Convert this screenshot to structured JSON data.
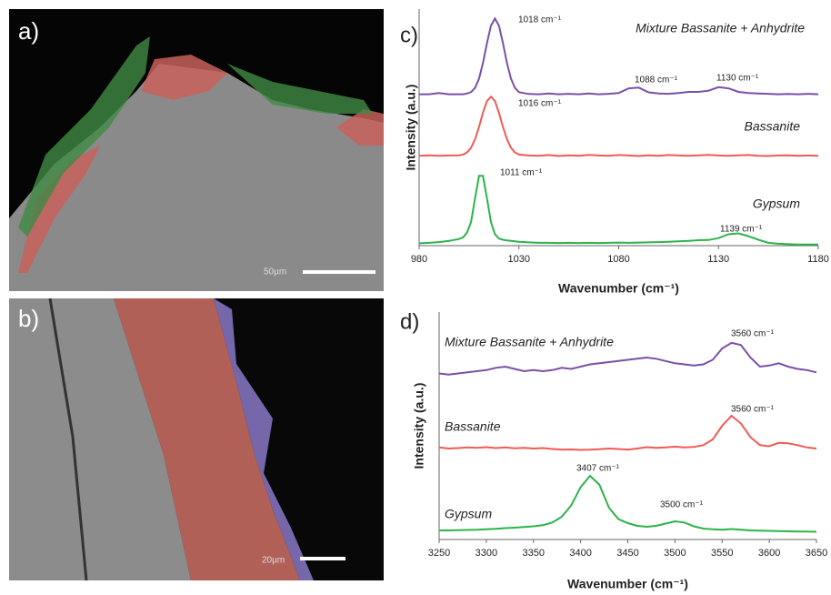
{
  "image_panels": [
    {
      "label": "a)",
      "scale_bar": "50µm"
    },
    {
      "label": "b)",
      "scale_bar": "20µm"
    }
  ],
  "chart_data": [
    {
      "type": "line",
      "panel_label": "c)",
      "x_label": "Wavenumber (cm⁻¹)",
      "y_label": "Intensity (a.u.)",
      "x": [
        980,
        985,
        990,
        995,
        1000,
        1002,
        1004,
        1006,
        1008,
        1010,
        1012,
        1014,
        1016,
        1018,
        1020,
        1022,
        1024,
        1026,
        1028,
        1030,
        1035,
        1040,
        1045,
        1050,
        1055,
        1060,
        1065,
        1070,
        1075,
        1080,
        1085,
        1090,
        1095,
        1100,
        1105,
        1110,
        1115,
        1120,
        1125,
        1130,
        1135,
        1140,
        1145,
        1150,
        1155,
        1160,
        1165,
        1170,
        1175,
        1180
      ],
      "xlim": [
        980,
        1180
      ],
      "xticks": [
        980,
        1030,
        1080,
        1130,
        1180
      ],
      "ylim": [
        0,
        100
      ],
      "series": [
        {
          "name": "Mixture Bassanite + Anhydrite",
          "color": "#7b4fa8",
          "values": [
            64,
            64,
            64.5,
            64,
            64,
            64,
            64.3,
            64.9,
            66.7,
            70.6,
            77.2,
            85.6,
            93,
            96,
            93,
            85.6,
            77.2,
            70.6,
            66.7,
            64.9,
            64.1,
            64,
            64.3,
            64,
            64.2,
            64,
            64.3,
            64,
            64.2,
            64.5,
            66.5,
            66.8,
            64.8,
            64.3,
            64.2,
            64.5,
            65,
            65,
            65.5,
            67,
            66.5,
            65,
            64.5,
            64.3,
            64.2,
            64,
            64.1,
            64,
            64.2,
            64
          ]
        },
        {
          "name": "Bassanite",
          "color": "#f05a55",
          "values": [
            38,
            38.2,
            38,
            38.1,
            38.2,
            38.5,
            39.4,
            41.4,
            45,
            50.2,
            56.2,
            61.1,
            63,
            61.1,
            56.2,
            50.2,
            45,
            41.4,
            39.4,
            38.5,
            38.1,
            38,
            38.3,
            37.9,
            38.2,
            38,
            38.4,
            38.1,
            38,
            38.3,
            38.1,
            37.9,
            38.2,
            38,
            38.3,
            38.1,
            38,
            38.2,
            38.4,
            38.1,
            38,
            38.2,
            38.3,
            38,
            37.9,
            38.1,
            38.2,
            38,
            38.1,
            38
          ]
        },
        {
          "name": "Gypsum",
          "color": "#2db34a",
          "values": [
            1,
            1.2,
            1.5,
            2,
            2.8,
            3.5,
            5.5,
            10,
            20,
            29.5,
            29.5,
            20,
            10,
            4.8,
            3,
            2.5,
            2.2,
            2,
            1.8,
            1.6,
            1.4,
            1.2,
            1.2,
            1.1,
            1.2,
            1.1,
            1.2,
            1.1,
            1.2,
            1.3,
            1.2,
            1.3,
            1.4,
            1.5,
            1.6,
            1.8,
            2,
            2.3,
            2.4,
            3.2,
            4.8,
            5.2,
            4,
            2.5,
            1.2,
            0.8,
            0.6,
            0.5,
            0.5,
            0.5
          ]
        }
      ],
      "annotations": [
        "1018 cm⁻¹",
        "1088 cm⁻¹",
        "1130 cm⁻¹",
        "1016 cm⁻¹",
        "1011 cm⁻¹",
        "1139 cm⁻¹"
      ]
    },
    {
      "type": "line",
      "panel_label": "d)",
      "x_label": "Wavenumber (cm⁻¹)",
      "y_label": "Intensity (a.u.)",
      "x": [
        3250,
        3260,
        3270,
        3280,
        3290,
        3300,
        3310,
        3320,
        3330,
        3340,
        3350,
        3360,
        3370,
        3380,
        3390,
        3400,
        3410,
        3420,
        3430,
        3440,
        3450,
        3460,
        3470,
        3480,
        3490,
        3500,
        3510,
        3520,
        3530,
        3540,
        3550,
        3560,
        3570,
        3580,
        3590,
        3600,
        3610,
        3620,
        3630,
        3640,
        3650
      ],
      "xlim": [
        3250,
        3650
      ],
      "xticks": [
        3250,
        3300,
        3350,
        3400,
        3450,
        3500,
        3550,
        3600,
        3650
      ],
      "ylim": [
        0,
        100
      ],
      "series": [
        {
          "name": "Mixture Bassanite + Anhydrite",
          "color": "#7b4fa8",
          "values": [
            73,
            72.5,
            73,
            73.5,
            74,
            74.5,
            75.5,
            76,
            75,
            74,
            74.5,
            74,
            74.5,
            75.5,
            75,
            76,
            77,
            77.5,
            78,
            78.5,
            79,
            79.5,
            80,
            79.5,
            78.5,
            77.5,
            77,
            76.5,
            77,
            79,
            84,
            86.5,
            85.5,
            80,
            76,
            76.5,
            77.5,
            76,
            75,
            74.5,
            73.5
          ]
        },
        {
          "name": "Bassanite",
          "color": "#f05a55",
          "values": [
            40.5,
            40,
            40.2,
            40.5,
            40.3,
            40.6,
            40.2,
            40.5,
            40.1,
            40.3,
            40,
            40.2,
            39.8,
            39.5,
            39.6,
            39.4,
            39.5,
            39.7,
            40,
            39.8,
            39.5,
            40,
            40.6,
            40.3,
            40.5,
            40.8,
            40.5,
            40.7,
            41.5,
            44,
            50,
            54.4,
            51,
            45,
            41.5,
            41,
            42.5,
            42.3,
            41.5,
            40.5,
            40
          ]
        },
        {
          "name": "Gypsum",
          "color": "#2db34a",
          "values": [
            4,
            4,
            4.1,
            4.2,
            4.3,
            4.5,
            4.7,
            5,
            5.2,
            5.5,
            5.8,
            6.3,
            7.5,
            10,
            15,
            23,
            28,
            24,
            14,
            9,
            7.2,
            6,
            5.6,
            6,
            7,
            8,
            7.5,
            5.8,
            4.8,
            4.5,
            4.3,
            4.6,
            4.3,
            4,
            3.9,
            3.8,
            3.7,
            3.6,
            3.5,
            3.5,
            3.4
          ]
        }
      ],
      "annotations": [
        "3560 cm⁻¹",
        "3560 cm⁻¹",
        "3407 cm⁻¹",
        "3500 cm⁻¹"
      ]
    }
  ]
}
